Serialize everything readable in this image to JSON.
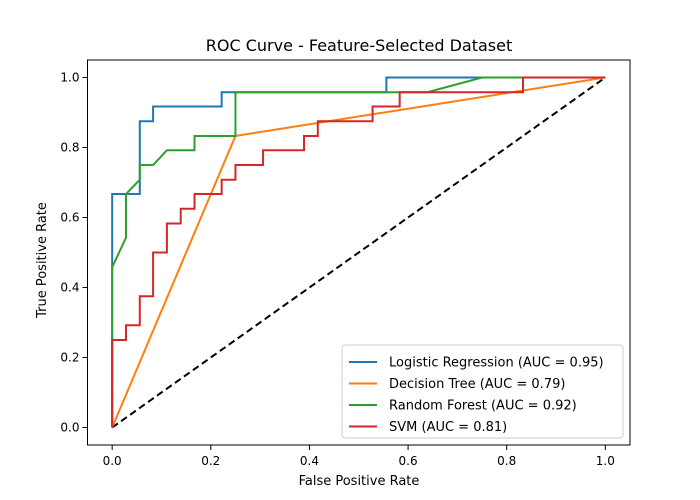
{
  "chart_data": {
    "type": "line",
    "title": "ROC Curve - Feature-Selected Dataset",
    "xlabel": "False Positive Rate",
    "ylabel": "True Positive Rate",
    "xlim": [
      -0.05,
      1.05
    ],
    "ylim": [
      -0.05,
      1.05
    ],
    "xticks": [
      "0.0",
      "0.2",
      "0.4",
      "0.6",
      "0.8",
      "1.0"
    ],
    "yticks": [
      "0.0",
      "0.2",
      "0.4",
      "0.6",
      "0.8",
      "1.0"
    ],
    "grid": false,
    "legend_position": "lower-right",
    "series": [
      {
        "name": "Logistic Regression (AUC = 0.95)",
        "color": "#1f77b4",
        "x": [
          0.0,
          0.0,
          0.0,
          0.056,
          0.056,
          0.083,
          0.083,
          0.222,
          0.222,
          0.556,
          0.556,
          1.0
        ],
        "y": [
          0.0,
          0.667,
          0.667,
          0.667,
          0.875,
          0.875,
          0.917,
          0.917,
          0.958,
          0.958,
          1.0,
          1.0
        ]
      },
      {
        "name": "Decision Tree (AUC = 0.79)",
        "color": "#ff7f0e",
        "x": [
          0.0,
          0.25,
          1.0
        ],
        "y": [
          0.0,
          0.833,
          1.0
        ]
      },
      {
        "name": "Random Forest (AUC = 0.92)",
        "color": "#2ca02c",
        "x": [
          0.0,
          0.0,
          0.0,
          0.028,
          0.028,
          0.056,
          0.056,
          0.083,
          0.111,
          0.167,
          0.167,
          0.25,
          0.25,
          0.639,
          0.75,
          1.0
        ],
        "y": [
          0.0,
          0.458,
          0.458,
          0.542,
          0.667,
          0.708,
          0.75,
          0.75,
          0.792,
          0.792,
          0.833,
          0.833,
          0.958,
          0.958,
          1.0,
          1.0
        ]
      },
      {
        "name": "SVM (AUC = 0.81)",
        "color": "#d62728",
        "x": [
          0.0,
          0.0,
          0.028,
          0.028,
          0.056,
          0.056,
          0.083,
          0.083,
          0.111,
          0.111,
          0.139,
          0.139,
          0.167,
          0.167,
          0.222,
          0.222,
          0.25,
          0.25,
          0.306,
          0.306,
          0.389,
          0.389,
          0.417,
          0.417,
          0.528,
          0.528,
          0.583,
          0.583,
          0.833,
          0.833,
          1.0
        ],
        "y": [
          0.0,
          0.25,
          0.25,
          0.292,
          0.292,
          0.375,
          0.375,
          0.5,
          0.5,
          0.583,
          0.583,
          0.625,
          0.625,
          0.667,
          0.667,
          0.708,
          0.708,
          0.75,
          0.75,
          0.792,
          0.792,
          0.833,
          0.833,
          0.875,
          0.875,
          0.917,
          0.917,
          0.958,
          0.958,
          1.0,
          1.0
        ]
      }
    ],
    "reference_line": {
      "x": [
        0,
        1
      ],
      "y": [
        0,
        1
      ],
      "color": "#000000",
      "style": "dashed"
    }
  }
}
